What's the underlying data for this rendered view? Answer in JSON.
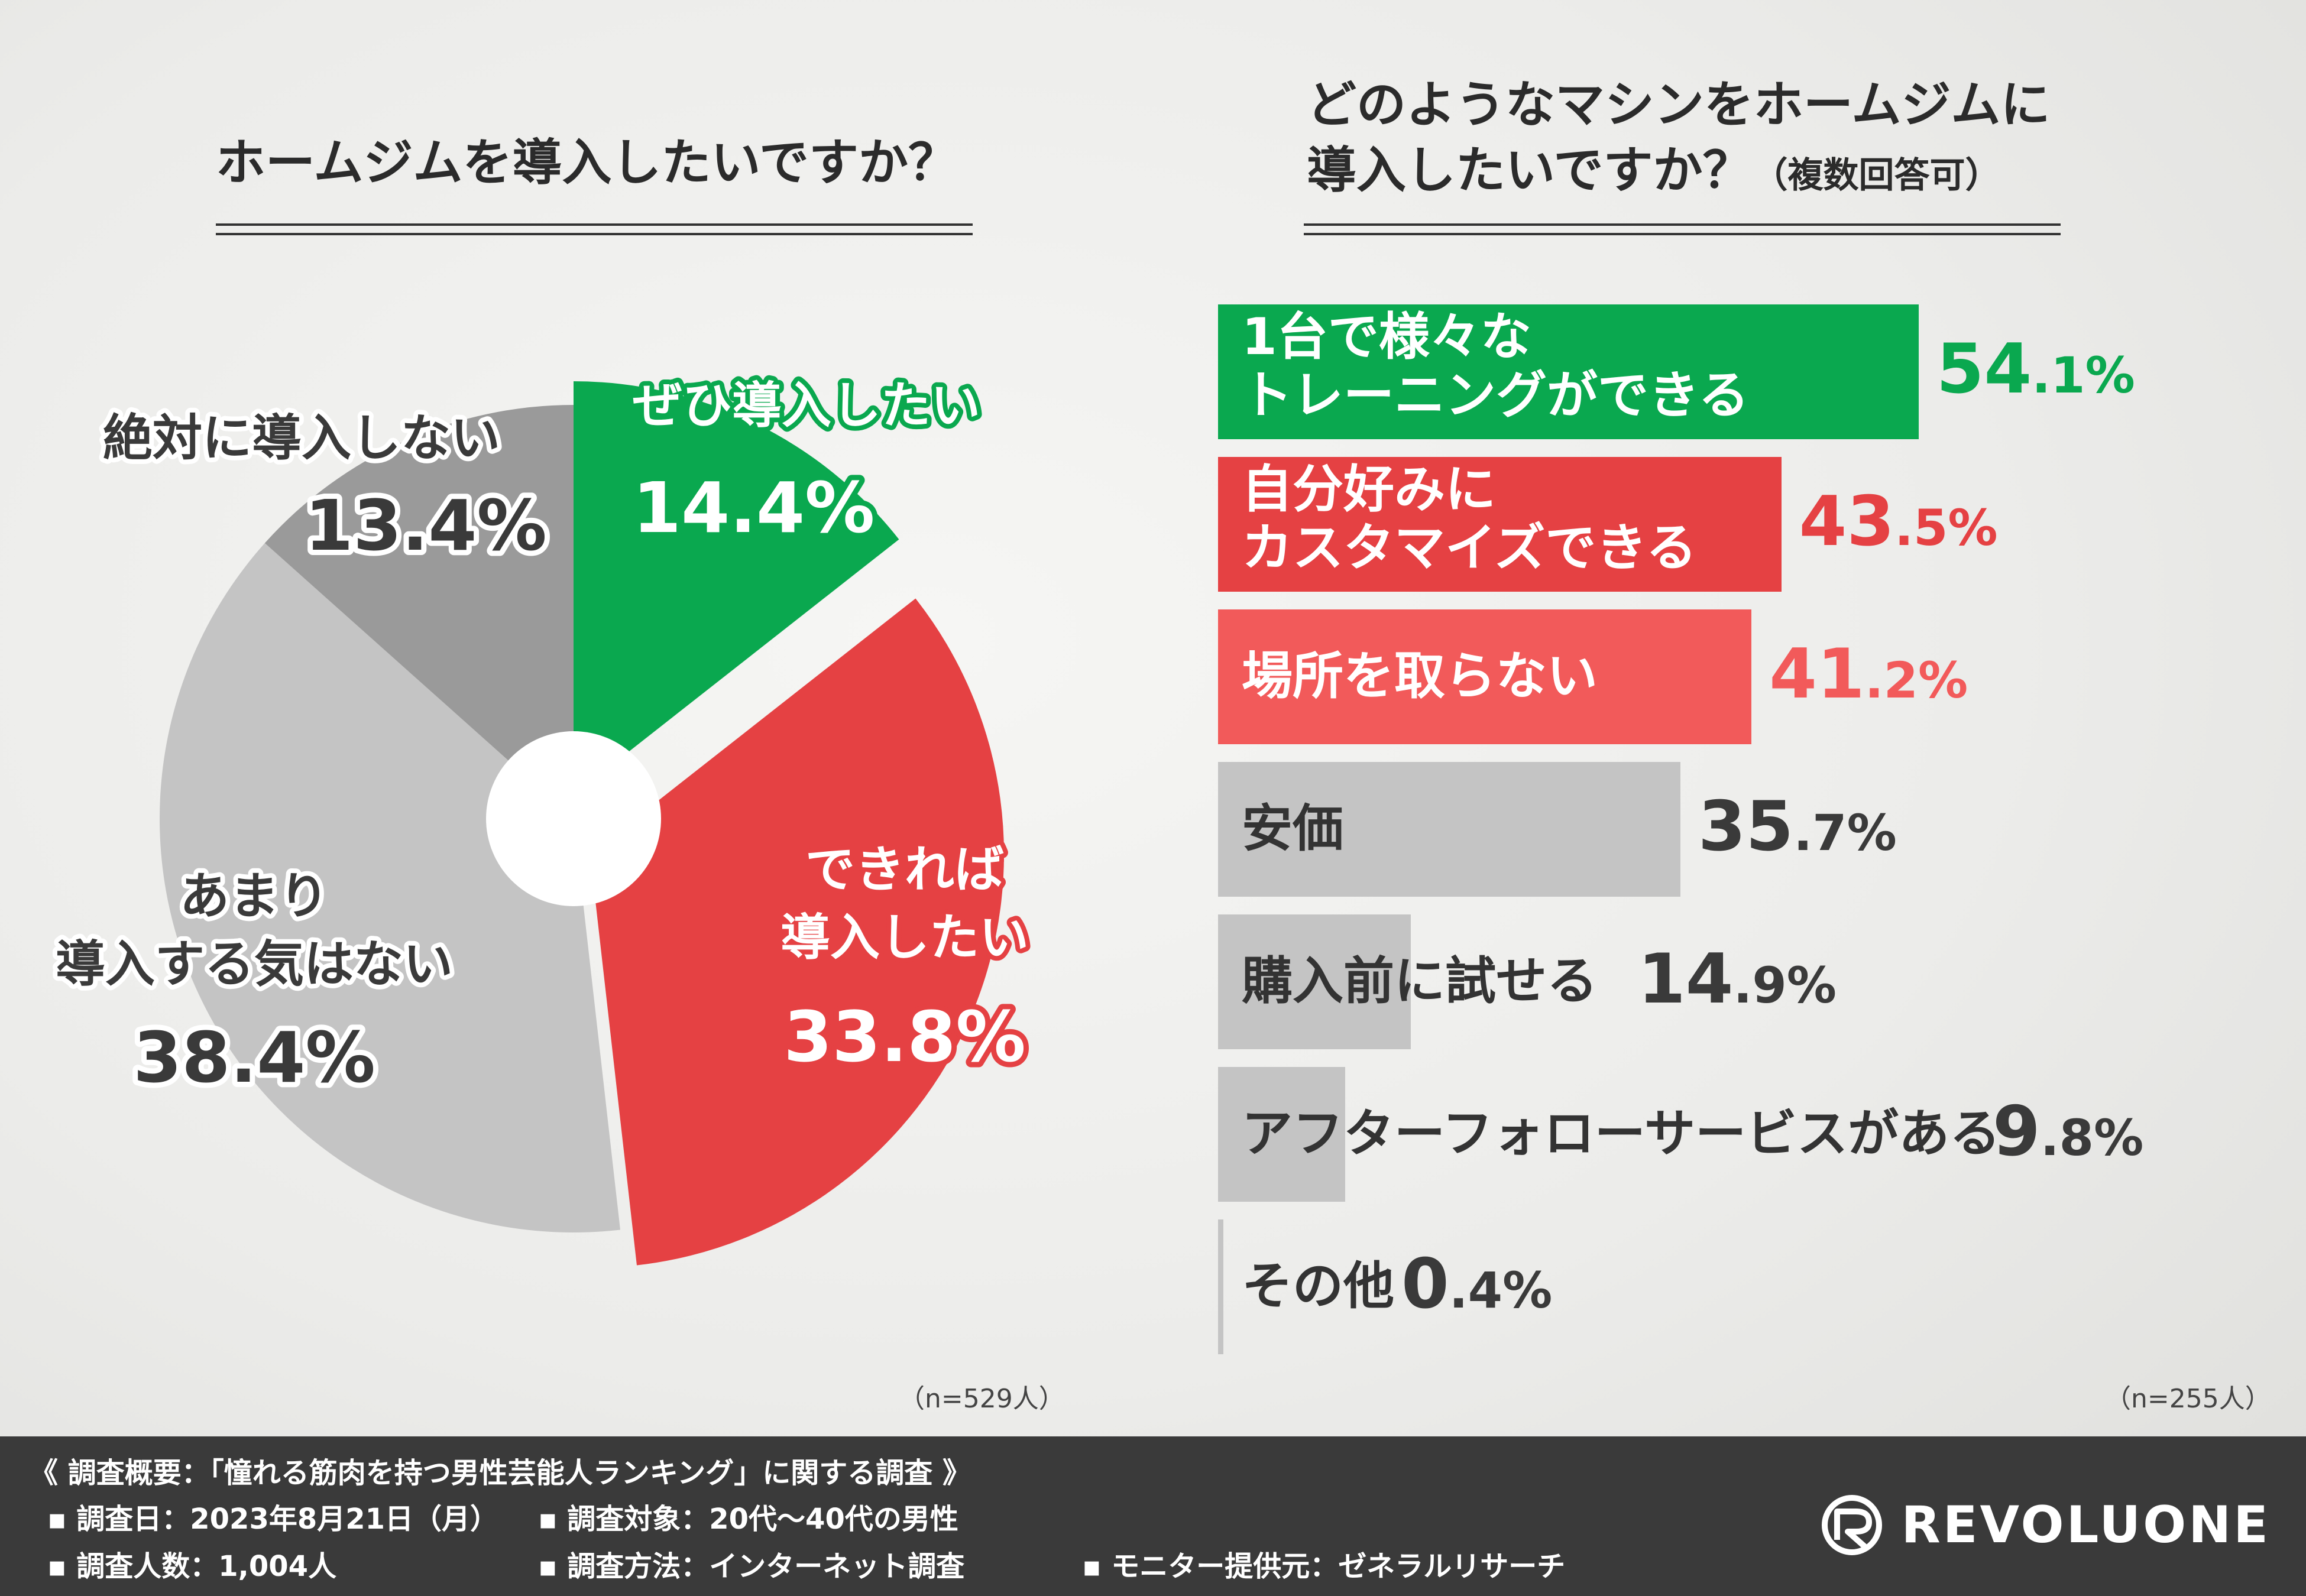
{
  "left_panel": {
    "title": "ホームジムを導入したいですか？",
    "n_label": "（n=529人）"
  },
  "right_panel": {
    "title_line1": "どのようなマシンをホームジムに",
    "title_line2": "導入したいですか？",
    "title_note": "（複数回答可）",
    "n_label": "（n=255人）"
  },
  "colors": {
    "green": "#0aa84f",
    "red": "#e54143",
    "light_red": "#f25a5a",
    "gray_dark": "#9a9a9a",
    "gray_light": "#c4c4c4",
    "value_gray": "#3a3a3a"
  },
  "chart_data": [
    {
      "type": "pie",
      "title": "ホームジムを導入したいですか？",
      "slices": [
        {
          "label": "ぜひ導入したい",
          "value": 14.4,
          "value_text": "14.4%",
          "color": "#0aa84f"
        },
        {
          "label": "できれば導入したい",
          "value": 33.8,
          "value_text": "33.8%",
          "color": "#e54143"
        },
        {
          "label": "あまり導入する気はない",
          "value": 38.4,
          "value_text": "38.4%",
          "color": "#c4c4c4"
        },
        {
          "label": "絶対に導入しない",
          "value": 13.4,
          "value_text": "13.4%",
          "color": "#9a9a9a"
        }
      ],
      "labels": {
        "s0": [
          "ぜひ導入したい"
        ],
        "s1": [
          "できれば",
          "導入したい"
        ],
        "s2": [
          "あまり",
          "導入する気はない"
        ],
        "s3": [
          "絶対に導入しない"
        ]
      }
    },
    {
      "type": "bar",
      "orientation": "horizontal",
      "title": "どのようなマシンをホームジムに導入したいですか？（複数回答可）",
      "categories": [
        "1台で様々なトレーニングができる",
        "自分好みにカスタマイズできる",
        "場所を取らない",
        "安価",
        "購入前に試せる",
        "アフターフォローサービスがある",
        "その他"
      ],
      "values": [
        54.1,
        43.5,
        41.2,
        35.7,
        14.9,
        9.8,
        0.4
      ],
      "value_text_main": [
        "54",
        "43",
        "41",
        "35",
        "14",
        "9",
        "0"
      ],
      "value_text_tail": [
        ".1%",
        ".5%",
        ".2%",
        ".7%",
        ".9%",
        ".8%",
        ".4%"
      ],
      "label_lines": [
        [
          "1台で様々な",
          "トレーニングができる"
        ],
        [
          "自分好みに",
          "カスタマイズできる"
        ],
        [
          "場所を取らない"
        ],
        [
          "安価"
        ],
        [
          "購入前に試せる"
        ],
        [
          "アフターフォローサービスがある"
        ],
        [
          "その他"
        ]
      ],
      "colors": [
        "#0aa84f",
        "#e54143",
        "#f25a5a",
        "#c4c4c4",
        "#c4c4c4",
        "#c4c4c4",
        "#c4c4c4"
      ],
      "value_colors": [
        "#0aa84f",
        "#e54143",
        "#f25a5a",
        "#3a3a3a",
        "#3a3a3a",
        "#3a3a3a",
        "#3a3a3a"
      ],
      "xlim": [
        0,
        100
      ]
    }
  ],
  "footer": {
    "summary": "《 調査概要：「憧れる筋肉を持つ男性芸能人ランキング」に関する調査 》",
    "date": "▪ 調査日：2023年8月21日（月）",
    "target": "▪ 調査対象：20代〜40代の男性",
    "count": "▪ 調査人数：1,004人",
    "method": "▪ 調査方法：インターネット調査",
    "provider": "▪ モニター提供元：ゼネラルリサーチ",
    "logo": "REVOLUONE"
  }
}
